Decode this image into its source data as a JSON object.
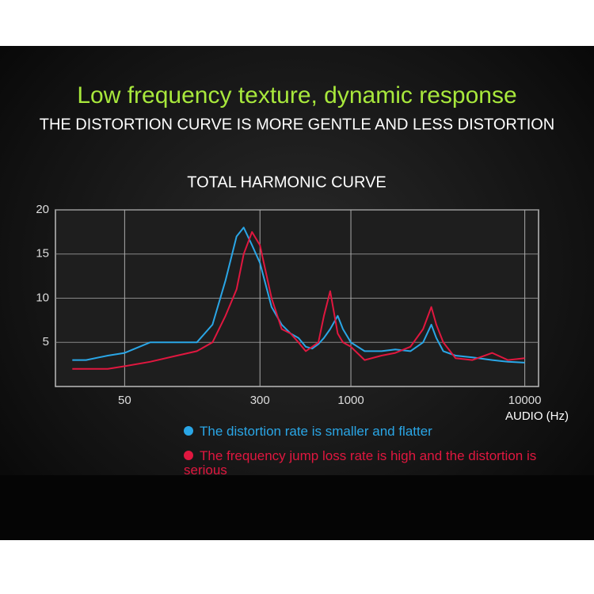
{
  "header": {
    "title": "Low frequency texture, dynamic response",
    "subtitle": "THE DISTORTION CURVE IS MORE GENTLE AND LESS DISTORTION"
  },
  "chart_data": {
    "type": "line",
    "title": "TOTAL HARMONIC CURVE",
    "x_label": "AUDIO (Hz)",
    "x_scale": "log",
    "grid": true,
    "x": [
      25,
      30,
      40,
      50,
      70,
      100,
      130,
      160,
      190,
      220,
      242,
      270,
      300,
      350,
      400,
      450,
      500,
      550,
      600,
      650,
      700,
      760,
      840,
      900,
      1000,
      1200,
      1500,
      1800,
      2200,
      2600,
      2900,
      3100,
      3400,
      4000,
      5000,
      6500,
      8000,
      10000
    ],
    "series": [
      {
        "name": "The distortion rate is smaller and flatter",
        "color": "#2aa6e6",
        "values": [
          3,
          3,
          3.5,
          3.8,
          5,
          5,
          5,
          7,
          12,
          17,
          18,
          16,
          14,
          9,
          7,
          6,
          5.5,
          4.5,
          4.3,
          4.8,
          5.5,
          6.5,
          8,
          6.5,
          5,
          4,
          4,
          4.2,
          4,
          5,
          7,
          5.5,
          4,
          3.5,
          3.3,
          3,
          2.8,
          2.7
        ]
      },
      {
        "name": "The frequency jump loss rate is high and the distortion is serious",
        "color": "#e0173f",
        "values": [
          2,
          2,
          2,
          2.3,
          2.8,
          3.5,
          4,
          5,
          8,
          11,
          15,
          17.5,
          16,
          10,
          6.5,
          6,
          5,
          4,
          4.5,
          5,
          8,
          10.8,
          6,
          5,
          4.5,
          3,
          3.5,
          3.8,
          4.5,
          6.5,
          9,
          7,
          5,
          3.2,
          3,
          3.8,
          3,
          3.2
        ]
      }
    ],
    "xlim": [
      20,
      12000
    ],
    "xticks": [
      50,
      300,
      1000,
      10000
    ],
    "ylim": [
      0,
      20
    ],
    "yticks": [
      5,
      10,
      15,
      20
    ]
  }
}
